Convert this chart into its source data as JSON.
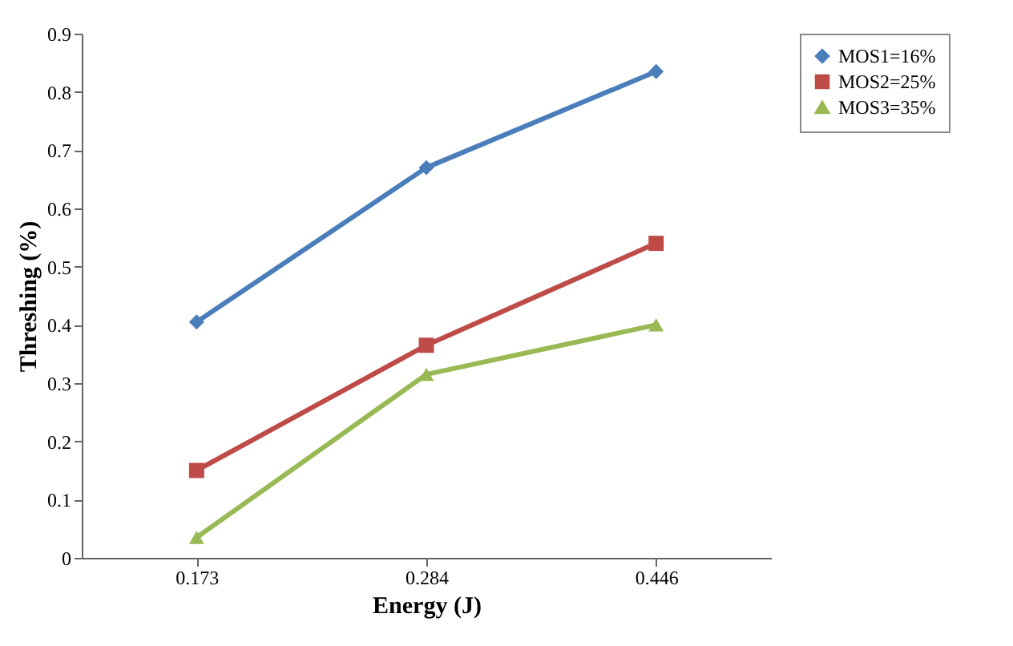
{
  "chart_data": {
    "type": "line",
    "xlabel": "Energy (J)",
    "ylabel": "Threshing (%)",
    "categories": [
      "0.173",
      "0.284",
      "0.446"
    ],
    "ylim": [
      0,
      0.9
    ],
    "yticks": [
      0,
      0.1,
      0.2,
      0.3,
      0.4,
      0.5,
      0.6,
      0.7,
      0.8,
      0.9
    ],
    "legend": "top right",
    "line_style": "solid",
    "series": [
      {
        "name": "MOS1=16%",
        "color": "#4a7ebb",
        "marker": "diamond",
        "values": [
          0.405,
          0.67,
          0.835
        ]
      },
      {
        "name": "MOS2=25%",
        "color": "#be4b48",
        "marker": "square",
        "values": [
          0.15,
          0.365,
          0.54
        ]
      },
      {
        "name": "MOS3=35%",
        "color": "#98b954",
        "marker": "triangle",
        "values": [
          0.035,
          0.315,
          0.4
        ]
      }
    ]
  }
}
